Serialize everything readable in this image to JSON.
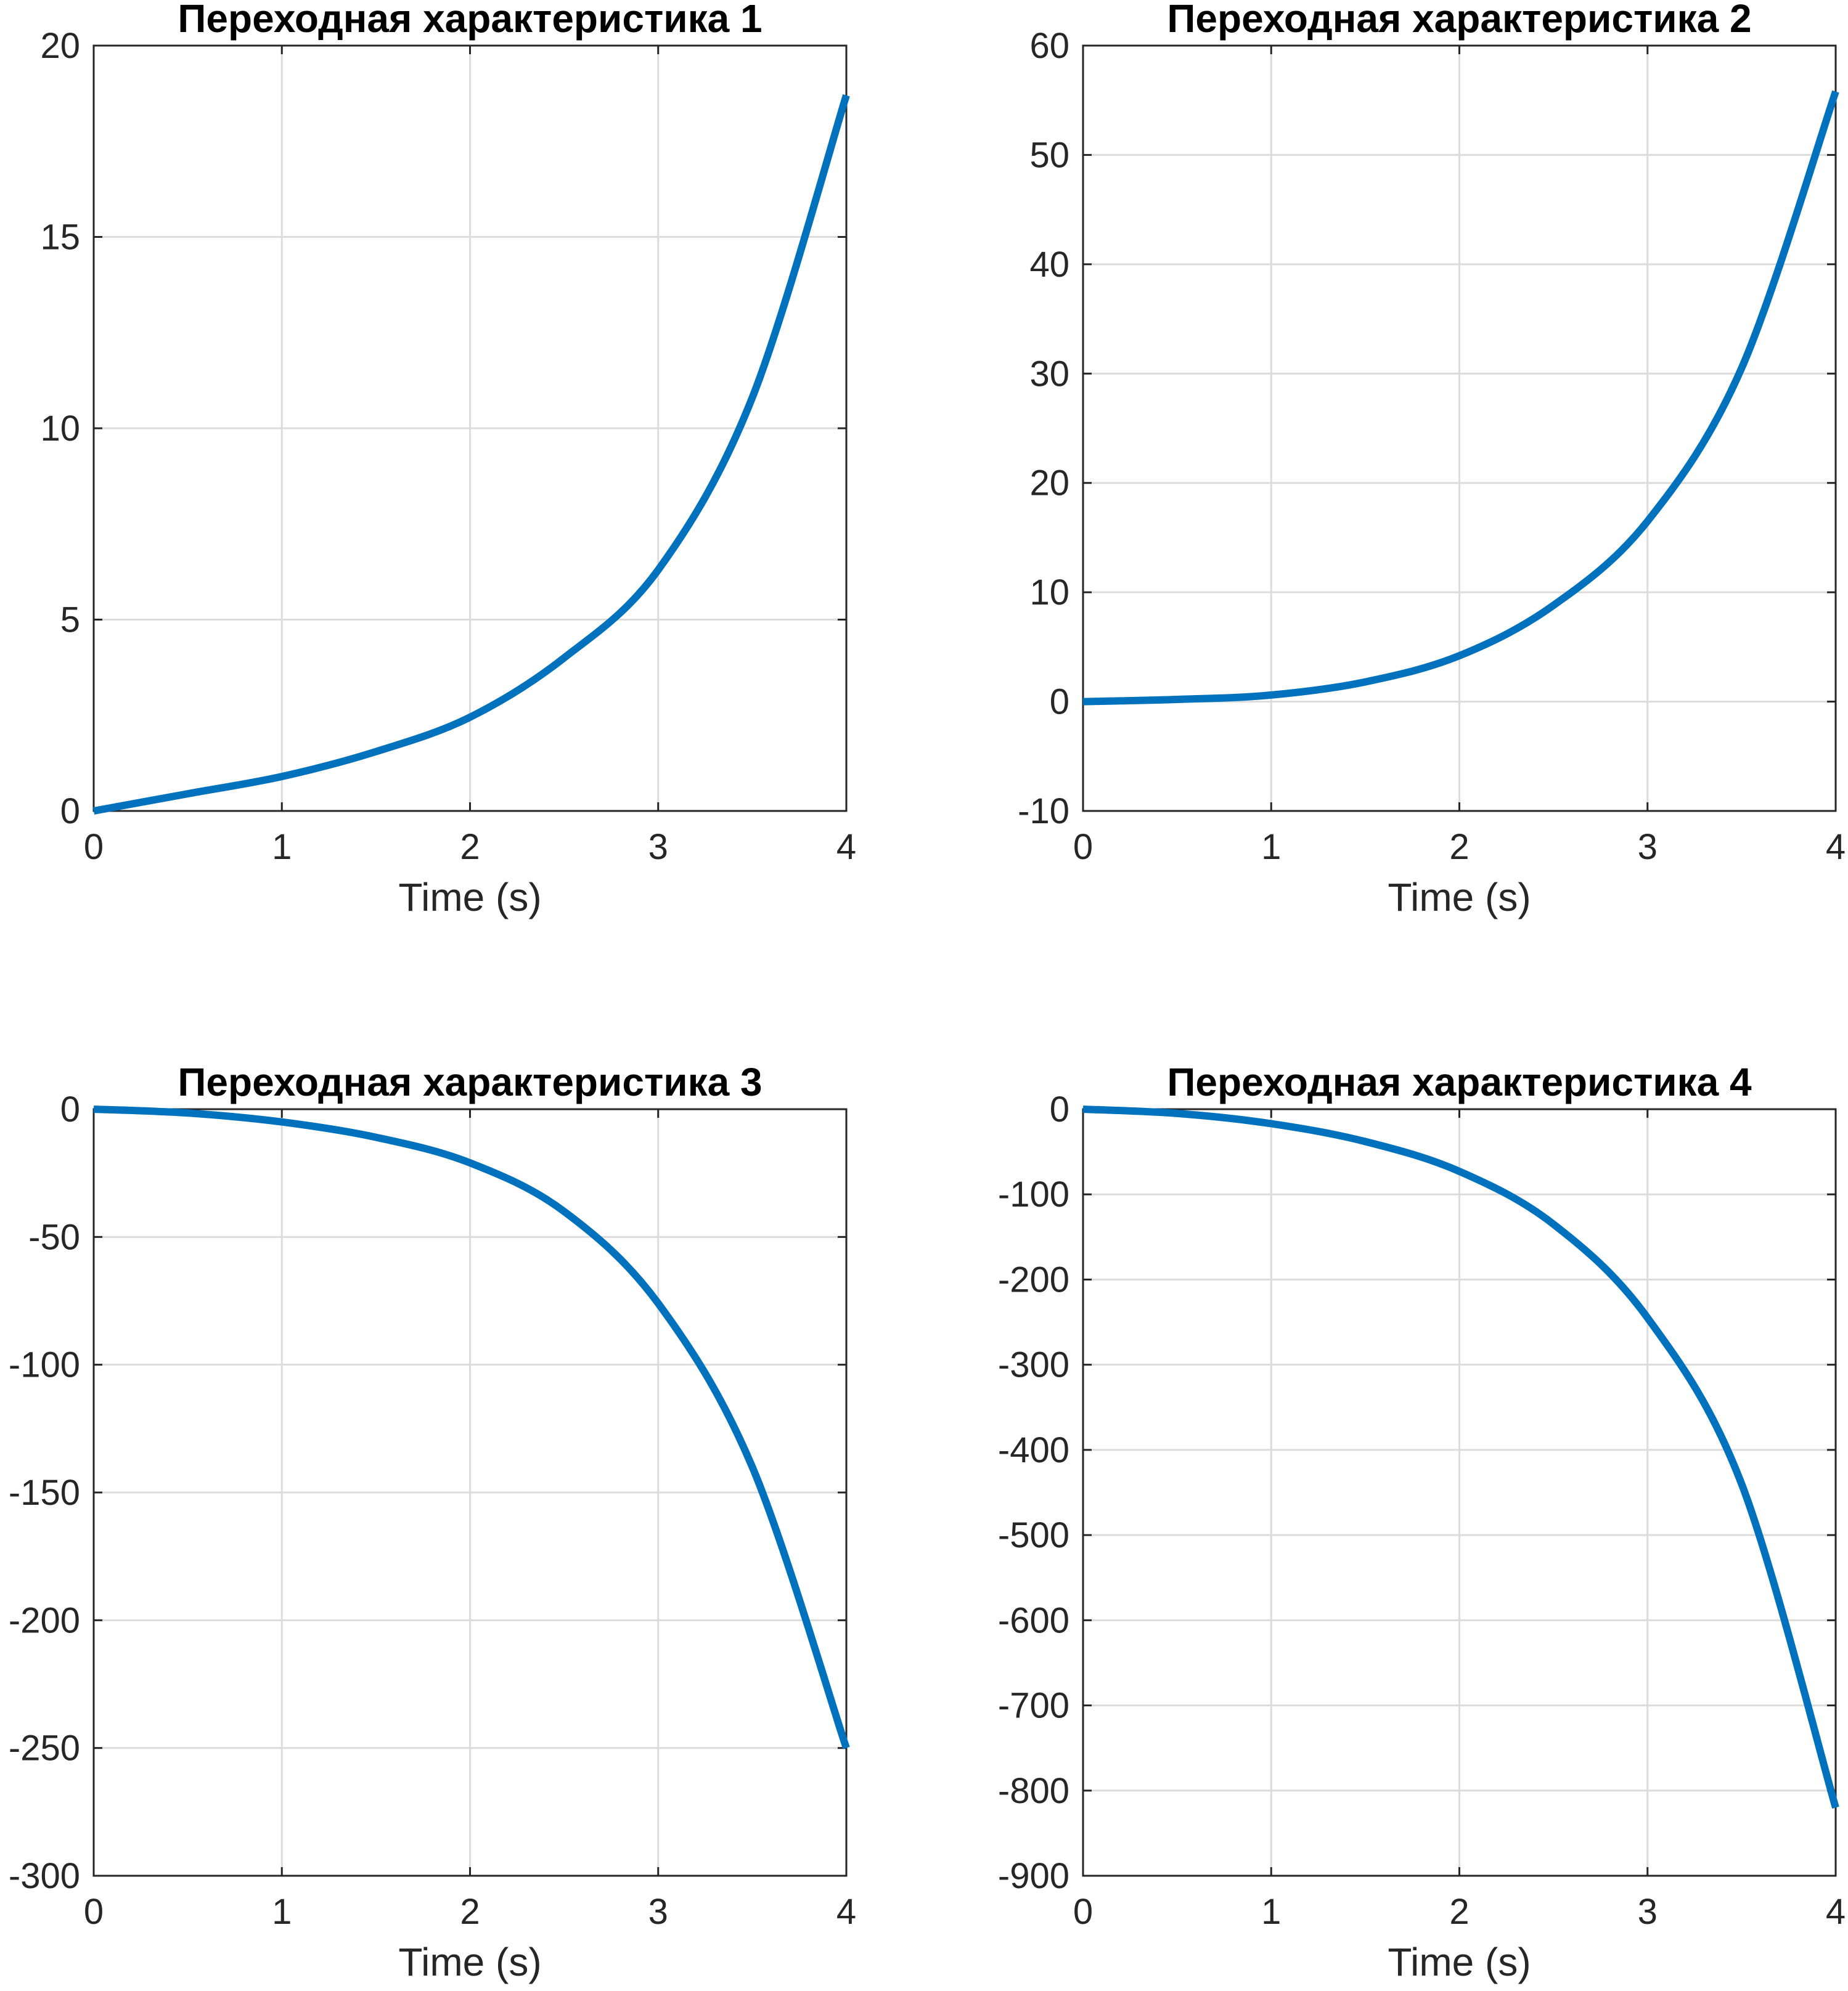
{
  "figure": {
    "background": "#ffffff"
  },
  "chart_data": [
    {
      "type": "line",
      "title": "Переходная характеристика 1",
      "xlabel": "Time (s)",
      "ylabel": "",
      "xlim": [
        0,
        4
      ],
      "ylim": [
        0,
        20
      ],
      "xticks": [
        "0",
        "1",
        "2",
        "3",
        "4"
      ],
      "yticks": [
        "0",
        "5",
        "10",
        "15",
        "20"
      ],
      "grid": true,
      "color": "#0072BD",
      "x": [
        0,
        0.5,
        1,
        1.5,
        2,
        2.5,
        3,
        3.5,
        4
      ],
      "y": [
        0,
        0.45,
        0.9,
        1.55,
        2.45,
        4.0,
        6.3,
        10.8,
        18.7
      ]
    },
    {
      "type": "line",
      "title": "Переходная характеристика 2",
      "xlabel": "Time (s)",
      "ylabel": "",
      "xlim": [
        0,
        4
      ],
      "ylim": [
        -10,
        60
      ],
      "xticks": [
        "0",
        "1",
        "2",
        "3",
        "4"
      ],
      "yticks": [
        "-10",
        "0",
        "10",
        "20",
        "30",
        "40",
        "50",
        "60"
      ],
      "grid": true,
      "color": "#0072BD",
      "x": [
        0,
        0.5,
        1,
        1.5,
        2,
        2.5,
        3,
        3.5,
        4
      ],
      "y": [
        0,
        0.2,
        0.6,
        1.8,
        4.2,
        8.8,
        16.5,
        30.5,
        55.8
      ]
    },
    {
      "type": "line",
      "title": "Переходная характеристика 3",
      "xlabel": "Time (s)",
      "ylabel": "",
      "xlim": [
        0,
        4
      ],
      "ylim": [
        -300,
        0
      ],
      "xticks": [
        "0",
        "1",
        "2",
        "3",
        "4"
      ],
      "yticks": [
        "-300",
        "-250",
        "-200",
        "-150",
        "-100",
        "-50",
        "0"
      ],
      "grid": true,
      "color": "#0072BD",
      "x": [
        0,
        0.5,
        1,
        1.5,
        2,
        2.5,
        3,
        3.5,
        4
      ],
      "y": [
        0,
        -1.5,
        -5,
        -11,
        -21,
        -40,
        -76,
        -140,
        -250
      ]
    },
    {
      "type": "line",
      "title": "Переходная характеристика 4",
      "xlabel": "Time (s)",
      "ylabel": "",
      "xlim": [
        0,
        4
      ],
      "ylim": [
        -900,
        0
      ],
      "xticks": [
        "0",
        "1",
        "2",
        "3",
        "4"
      ],
      "yticks": [
        "-900",
        "-800",
        "-700",
        "-600",
        "-500",
        "-400",
        "-300",
        "-200",
        "-100",
        "0"
      ],
      "grid": true,
      "color": "#0072BD",
      "x": [
        0,
        0.5,
        1,
        1.5,
        2,
        2.5,
        3,
        3.5,
        4
      ],
      "y": [
        0,
        -5,
        -17,
        -38,
        -73,
        -135,
        -245,
        -440,
        -820
      ]
    }
  ]
}
